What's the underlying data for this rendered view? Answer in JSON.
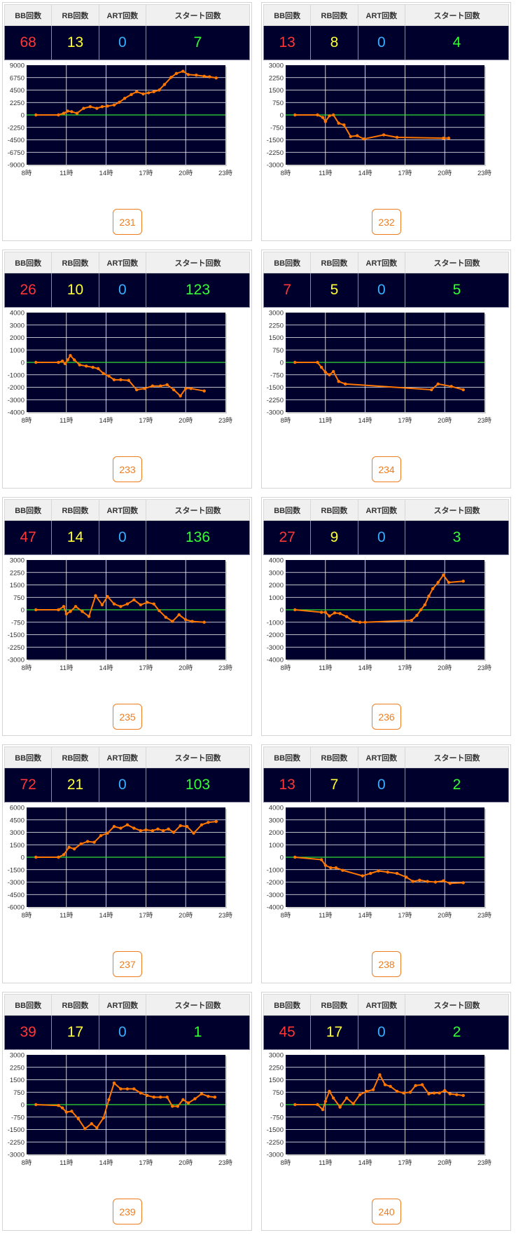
{
  "headers": {
    "bb": "BB回数",
    "rb": "RB回数",
    "art": "ART回数",
    "start": "スタート回数"
  },
  "x_tick_labels": [
    "8時",
    "11時",
    "14時",
    "17時",
    "20時",
    "23時"
  ],
  "colors": {
    "plot_bg": "#00002d",
    "line": "#ff7700",
    "zero_line": "#33dd33",
    "grid": "#ffffff",
    "button": "#ee7d22"
  },
  "machines": [
    {
      "number": "231",
      "bb": "68",
      "rb": "13",
      "art": "0",
      "start": "7",
      "chart_data": {
        "type": "line",
        "xlim": [
          8,
          23
        ],
        "ylim": [
          -9000,
          9000
        ],
        "y_ticks": [
          9000,
          6750,
          4500,
          2250,
          0,
          -2250,
          -4500,
          -6750,
          -9000
        ],
        "x": [
          8.7,
          10.4,
          10.8,
          11.1,
          11.4,
          11.8,
          12.3,
          12.8,
          13.3,
          13.7,
          14.1,
          14.6,
          15.0,
          15.4,
          15.9,
          16.3,
          16.8,
          17.2,
          17.6,
          18.0,
          18.4,
          18.9,
          19.3,
          19.8,
          20.2,
          20.8,
          21.4,
          21.8,
          22.3
        ],
        "y": [
          0,
          0,
          300,
          700,
          600,
          300,
          1200,
          1500,
          1200,
          1500,
          1600,
          1800,
          2300,
          3000,
          3700,
          4200,
          3800,
          4000,
          4200,
          4500,
          5500,
          6800,
          7500,
          7900,
          7300,
          7200,
          7000,
          6900,
          6700
        ]
      }
    },
    {
      "number": "232",
      "bb": "13",
      "rb": "8",
      "art": "0",
      "start": "4",
      "chart_data": {
        "type": "line",
        "xlim": [
          8,
          23
        ],
        "ylim": [
          -3000,
          3000
        ],
        "y_ticks": [
          3000,
          2250,
          1500,
          750,
          0,
          -750,
          -1500,
          -2250,
          -3000
        ],
        "x": [
          8.7,
          10.4,
          10.8,
          11.0,
          11.3,
          11.6,
          12.0,
          12.4,
          12.9,
          13.4,
          13.9,
          15.4,
          16.4,
          19.9,
          20.3
        ],
        "y": [
          0,
          0,
          -150,
          -400,
          -50,
          0,
          -500,
          -600,
          -1300,
          -1250,
          -1450,
          -1200,
          -1350,
          -1400,
          -1400
        ]
      }
    },
    {
      "number": "233",
      "bb": "26",
      "rb": "10",
      "art": "0",
      "start": "123",
      "chart_data": {
        "type": "line",
        "xlim": [
          8,
          23
        ],
        "ylim": [
          -4000,
          4000
        ],
        "y_ticks": [
          4000,
          3000,
          2000,
          1000,
          0,
          -1000,
          -2000,
          -3000,
          -4000
        ],
        "x": [
          8.7,
          10.4,
          10.7,
          10.9,
          11.1,
          11.3,
          11.6,
          12.0,
          12.5,
          13.0,
          13.4,
          13.8,
          14.2,
          14.6,
          15.1,
          15.7,
          16.3,
          16.9,
          17.5,
          18.1,
          18.6,
          19.1,
          19.6,
          20.0,
          20.4,
          21.4
        ],
        "y": [
          0,
          0,
          100,
          -100,
          200,
          550,
          200,
          -200,
          -300,
          -400,
          -500,
          -900,
          -1100,
          -1400,
          -1400,
          -1450,
          -2200,
          -2100,
          -1900,
          -1900,
          -1800,
          -2200,
          -2700,
          -2100,
          -2100,
          -2300
        ]
      }
    },
    {
      "number": "234",
      "bb": "7",
      "rb": "5",
      "art": "0",
      "start": "5",
      "chart_data": {
        "type": "line",
        "xlim": [
          8,
          23
        ],
        "ylim": [
          -3000,
          3000
        ],
        "y_ticks": [
          3000,
          2250,
          1500,
          750,
          0,
          -750,
          -1500,
          -2250,
          -3000
        ],
        "x": [
          8.7,
          10.4,
          10.7,
          11.0,
          11.3,
          11.6,
          12.0,
          12.5,
          19.0,
          19.5,
          20.5,
          21.4
        ],
        "y": [
          0,
          0,
          -300,
          -600,
          -750,
          -550,
          -1150,
          -1300,
          -1650,
          -1300,
          -1450,
          -1650
        ]
      }
    },
    {
      "number": "235",
      "bb": "47",
      "rb": "14",
      "art": "0",
      "start": "136",
      "chart_data": {
        "type": "line",
        "xlim": [
          8,
          23
        ],
        "ylim": [
          -3000,
          3000
        ],
        "y_ticks": [
          3000,
          2250,
          1500,
          750,
          0,
          -750,
          -1500,
          -2250,
          -3000
        ],
        "x": [
          8.7,
          10.4,
          10.8,
          11.0,
          11.3,
          11.7,
          12.2,
          12.7,
          13.2,
          13.7,
          14.1,
          14.6,
          15.1,
          15.6,
          16.1,
          16.6,
          17.1,
          17.6,
          18.0,
          18.5,
          19.0,
          19.5,
          20.0,
          20.5,
          21.4
        ],
        "y": [
          0,
          0,
          200,
          -250,
          -100,
          200,
          -100,
          -400,
          850,
          300,
          800,
          350,
          200,
          350,
          600,
          300,
          450,
          350,
          -50,
          -450,
          -700,
          -300,
          -600,
          -700,
          -750
        ]
      }
    },
    {
      "number": "236",
      "bb": "27",
      "rb": "9",
      "art": "0",
      "start": "3",
      "chart_data": {
        "type": "line",
        "xlim": [
          8,
          23
        ],
        "ylim": [
          -4000,
          4000
        ],
        "y_ticks": [
          4000,
          3000,
          2000,
          1000,
          0,
          -1000,
          -2000,
          -3000,
          -4000
        ],
        "x": [
          8.7,
          10.7,
          11.0,
          11.3,
          11.7,
          12.1,
          12.6,
          13.1,
          13.6,
          14.0,
          17.5,
          17.9,
          18.2,
          18.5,
          18.8,
          19.1,
          19.5,
          19.9,
          20.3,
          21.4
        ],
        "y": [
          0,
          -200,
          -200,
          -500,
          -250,
          -300,
          -550,
          -900,
          -1000,
          -1000,
          -850,
          -450,
          0,
          400,
          1100,
          1700,
          2200,
          2800,
          2200,
          2300
        ]
      }
    },
    {
      "number": "237",
      "bb": "72",
      "rb": "21",
      "art": "0",
      "start": "103",
      "chart_data": {
        "type": "line",
        "xlim": [
          8,
          23
        ],
        "ylim": [
          -6000,
          6000
        ],
        "y_ticks": [
          6000,
          4500,
          3000,
          1500,
          0,
          -1500,
          -3000,
          -4500,
          -6000
        ],
        "x": [
          8.7,
          10.4,
          10.8,
          11.2,
          11.6,
          12.1,
          12.6,
          13.1,
          13.6,
          14.1,
          14.6,
          15.1,
          15.6,
          16.1,
          16.6,
          17.0,
          17.5,
          17.9,
          18.3,
          18.7,
          19.1,
          19.6,
          20.1,
          20.6,
          21.2,
          21.7,
          22.3
        ],
        "y": [
          0,
          0,
          300,
          1200,
          1000,
          1600,
          1900,
          1800,
          2600,
          2900,
          3700,
          3500,
          3900,
          3500,
          3200,
          3300,
          3200,
          3400,
          3200,
          3400,
          3000,
          3800,
          3700,
          2900,
          3900,
          4200,
          4300
        ]
      }
    },
    {
      "number": "238",
      "bb": "13",
      "rb": "7",
      "art": "0",
      "start": "2",
      "chart_data": {
        "type": "line",
        "xlim": [
          8,
          23
        ],
        "ylim": [
          -4000,
          4000
        ],
        "y_ticks": [
          4000,
          3000,
          2000,
          1000,
          0,
          -1000,
          -2000,
          -3000,
          -4000
        ],
        "x": [
          8.7,
          10.7,
          11.0,
          11.4,
          11.8,
          12.3,
          13.8,
          14.4,
          15.0,
          15.7,
          16.4,
          17.1,
          17.6,
          18.1,
          18.7,
          19.3,
          19.9,
          20.4,
          21.4
        ],
        "y": [
          0,
          -200,
          -650,
          -850,
          -850,
          -1050,
          -1500,
          -1300,
          -1100,
          -1200,
          -1300,
          -1600,
          -1950,
          -1850,
          -1950,
          -2000,
          -1900,
          -2100,
          -2050
        ]
      }
    },
    {
      "number": "239",
      "bb": "39",
      "rb": "17",
      "art": "0",
      "start": "1",
      "chart_data": {
        "type": "line",
        "xlim": [
          8,
          23
        ],
        "ylim": [
          -3000,
          3000
        ],
        "y_ticks": [
          3000,
          2250,
          1500,
          750,
          0,
          -750,
          -1500,
          -2250,
          -3000
        ],
        "x": [
          8.7,
          10.4,
          10.7,
          11.0,
          11.4,
          11.9,
          12.4,
          12.9,
          13.3,
          13.8,
          14.2,
          14.6,
          15.1,
          15.6,
          16.1,
          16.6,
          17.1,
          17.6,
          18.1,
          18.6,
          19.0,
          19.4,
          19.8,
          20.2,
          20.7,
          21.2,
          21.7,
          22.2
        ],
        "y": [
          0,
          -50,
          -200,
          -450,
          -400,
          -850,
          -1450,
          -1150,
          -1400,
          -800,
          300,
          1300,
          950,
          950,
          950,
          700,
          550,
          450,
          450,
          450,
          -100,
          -100,
          300,
          100,
          350,
          650,
          500,
          450
        ]
      }
    },
    {
      "number": "240",
      "bb": "45",
      "rb": "17",
      "art": "0",
      "start": "2",
      "chart_data": {
        "type": "line",
        "xlim": [
          8,
          23
        ],
        "ylim": [
          -3000,
          3000
        ],
        "y_ticks": [
          3000,
          2250,
          1500,
          750,
          0,
          -750,
          -1500,
          -2250,
          -3000
        ],
        "x": [
          8.7,
          10.4,
          10.8,
          11.0,
          11.3,
          11.6,
          12.1,
          12.6,
          13.1,
          13.6,
          14.1,
          14.6,
          15.1,
          15.5,
          15.9,
          16.4,
          16.9,
          17.4,
          17.8,
          18.3,
          18.8,
          19.2,
          19.6,
          20.0,
          20.4,
          20.9,
          21.4
        ],
        "y": [
          0,
          0,
          -300,
          200,
          800,
          400,
          -150,
          400,
          50,
          600,
          800,
          900,
          1800,
          1200,
          1100,
          800,
          700,
          750,
          1150,
          1200,
          650,
          700,
          700,
          850,
          650,
          600,
          550
        ]
      }
    }
  ]
}
